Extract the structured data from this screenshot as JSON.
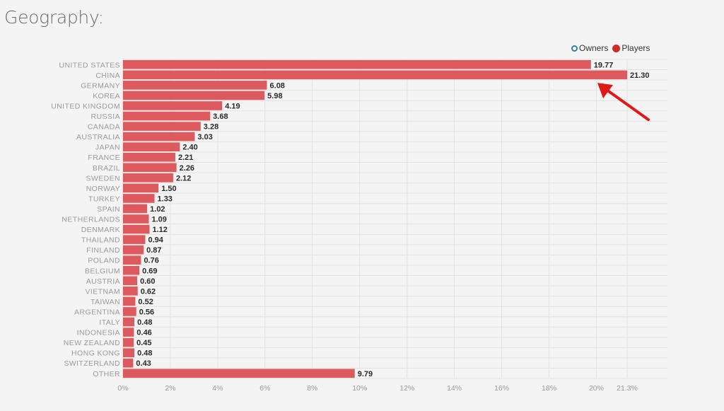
{
  "page": {
    "title": "Geography:"
  },
  "legend": {
    "owners_label": "Owners",
    "players_label": "Players",
    "placement": "top-right"
  },
  "colors": {
    "bar": "#dc5a5e",
    "label": "#9a9a9a",
    "value": "#2a2a2a",
    "grid": "#e2e2e2",
    "arrow": "#e01818",
    "owners": "#2e7fa3",
    "players": "#cf2b2b"
  },
  "chart_data": {
    "type": "bar",
    "orientation": "horizontal",
    "categories": [
      "UNITED STATES",
      "CHINA",
      "GERMANY",
      "KOREA",
      "UNITED KINGDOM",
      "RUSSIA",
      "CANADA",
      "AUSTRALIA",
      "JAPAN",
      "FRANCE",
      "BRAZIL",
      "SWEDEN",
      "NORWAY",
      "TURKEY",
      "SPAIN",
      "NETHERLANDS",
      "DENMARK",
      "THAILAND",
      "FINLAND",
      "POLAND",
      "BELGIUM",
      "AUSTRIA",
      "VIETNAM",
      "TAIWAN",
      "ARGENTINA",
      "ITALY",
      "INDONESIA",
      "NEW ZEALAND",
      "HONG KONG",
      "SWITZERLAND",
      "OTHER"
    ],
    "series": [
      {
        "name": "Players",
        "values": [
          19.77,
          21.3,
          6.08,
          5.98,
          4.19,
          3.68,
          3.28,
          3.03,
          2.4,
          2.21,
          2.26,
          2.12,
          1.5,
          1.33,
          1.02,
          1.09,
          1.12,
          0.94,
          0.87,
          0.76,
          0.69,
          0.6,
          0.62,
          0.52,
          0.56,
          0.48,
          0.46,
          0.45,
          0.48,
          0.43,
          9.79
        ],
        "value_labels": [
          "19.77",
          "21.30",
          "6.08",
          "5.98",
          "4.19",
          "3.68",
          "3.28",
          "3.03",
          "2.40",
          "2.21",
          "2.26",
          "2.12",
          "1.50",
          "1.33",
          "1.02",
          "1.09",
          "1.12",
          "0.94",
          "0.87",
          "0.76",
          "0.69",
          "0.60",
          "0.62",
          "0.52",
          "0.56",
          "0.48",
          "0.46",
          "0.45",
          "0.48",
          "0.43",
          "9.79"
        ]
      }
    ],
    "xlim": [
      0,
      21.3
    ],
    "x_ticks": [
      0,
      2,
      4,
      6,
      8,
      10,
      12,
      14,
      16,
      18,
      20,
      21.3
    ],
    "x_tick_labels": [
      "0%",
      "2%",
      "4%",
      "6%",
      "8%",
      "10%",
      "12%",
      "14%",
      "16%",
      "18%",
      "20%",
      "21.3%"
    ],
    "grid": true,
    "annotation": {
      "type": "arrow",
      "target": "CHINA"
    }
  }
}
